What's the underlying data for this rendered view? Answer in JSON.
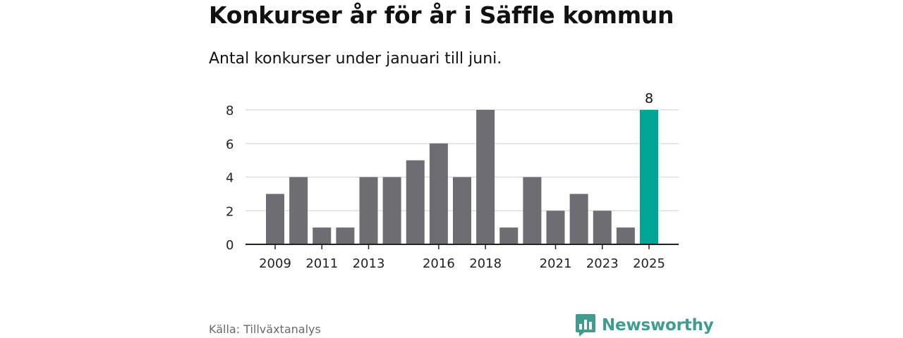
{
  "title": "Konkurser år för år i Säffle kommun",
  "subtitle": "Antal konkurser under januari till juni.",
  "source": "Källa: Tillväxtanalys",
  "brand": {
    "name": "Newsworthy",
    "icon": "newsworthy-logo-icon",
    "color": "#3f9c8f"
  },
  "colors": {
    "bar": "#6d6d72",
    "highlight": "#00a596",
    "grid": "#d9d9d9",
    "axis": "#222222"
  },
  "chart_data": {
    "type": "bar",
    "categories": [
      "2009",
      "2010",
      "2011",
      "2012",
      "2013",
      "2014",
      "2015",
      "2016",
      "2017",
      "2018",
      "2019",
      "2020",
      "2021",
      "2022",
      "2023",
      "2024",
      "2025"
    ],
    "values": [
      3,
      4,
      1,
      1,
      4,
      4,
      5,
      6,
      4,
      8,
      1,
      4,
      2,
      3,
      2,
      1,
      8
    ],
    "tick_labels_x": [
      "2009",
      "2011",
      "2013",
      "2016",
      "2018",
      "2021",
      "2023",
      "2025"
    ],
    "yticks": [
      0,
      2,
      4,
      6,
      8
    ],
    "ylim": [
      0,
      8
    ],
    "highlight_category": "2025",
    "data_labels": [
      {
        "category": "2025",
        "text": "8"
      }
    ],
    "grid": true,
    "legend": "none"
  }
}
